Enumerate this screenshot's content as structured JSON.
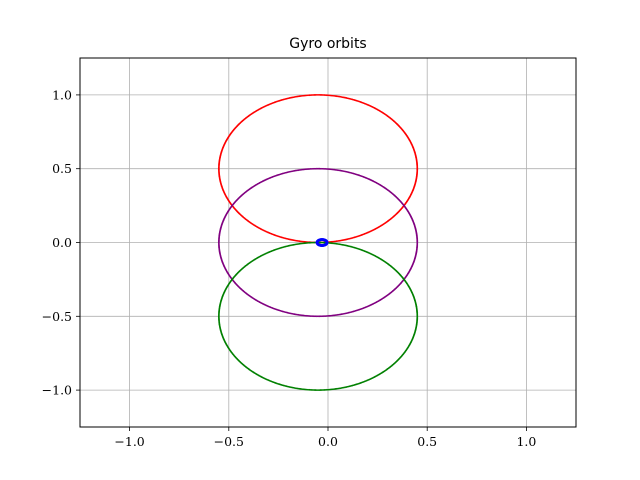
{
  "chart_data": {
    "type": "scatter",
    "title": "Gyro orbits",
    "xlabel": "",
    "ylabel": "",
    "xlim": [
      -1.25,
      1.25
    ],
    "ylim": [
      -1.25,
      1.25
    ],
    "grid": true,
    "x_ticks": [
      -1.0,
      -0.5,
      0.0,
      0.5,
      1.0
    ],
    "y_ticks": [
      -1.0,
      -0.5,
      0.0,
      0.5,
      1.0
    ],
    "x_tick_labels": [
      "−1.0",
      "−0.5",
      "0.0",
      "0.5",
      "1.0"
    ],
    "y_tick_labels": [
      "−1.0",
      "−0.5",
      "0.0",
      "0.5",
      "1.0"
    ],
    "series": [
      {
        "color": "#ff0000",
        "shape": "circle",
        "center": [
          -0.05,
          0.5
        ],
        "radius": [
          0.5,
          0.5
        ]
      },
      {
        "color": "#800080",
        "shape": "circle",
        "center": [
          -0.05,
          0.0
        ],
        "radius": [
          0.5,
          0.5
        ]
      },
      {
        "color": "#008000",
        "shape": "circle",
        "center": [
          -0.05,
          -0.5
        ],
        "radius": [
          0.5,
          0.5
        ]
      },
      {
        "color": "#0000ff",
        "shape": "circle",
        "center": [
          -0.03,
          0.0
        ],
        "radius": [
          0.025,
          0.02
        ]
      }
    ]
  }
}
